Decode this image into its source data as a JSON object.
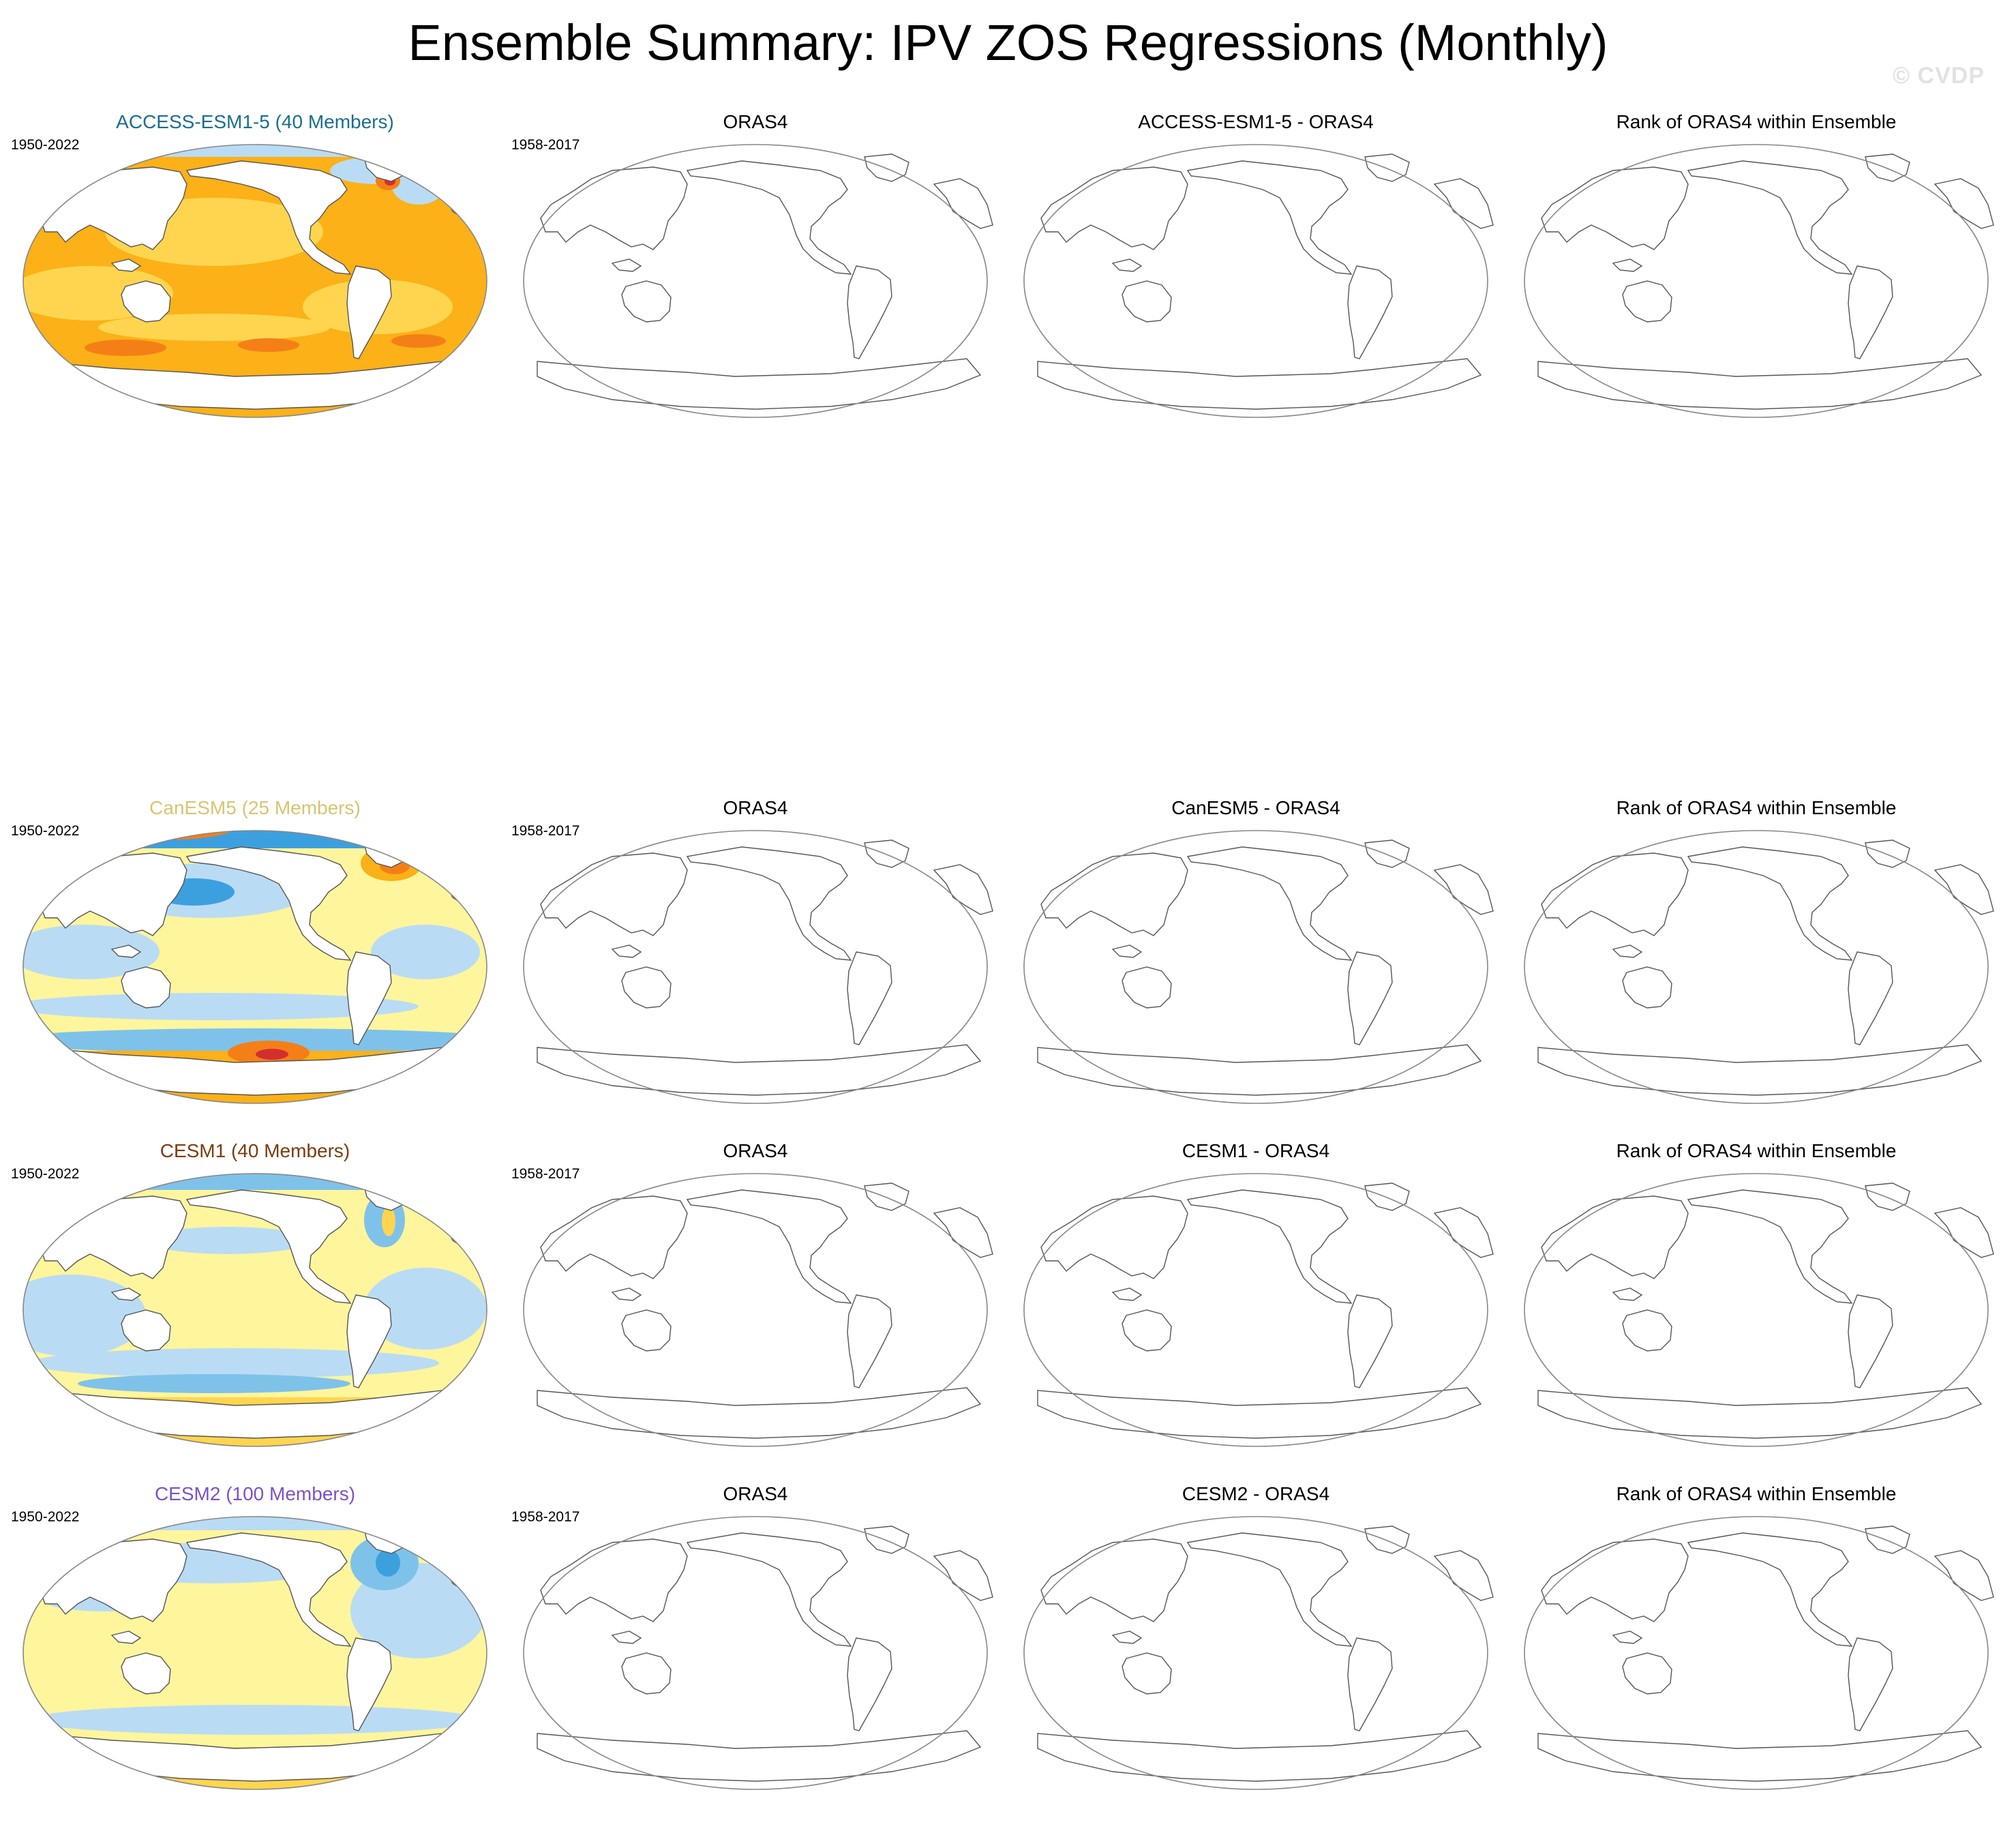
{
  "title": "Ensemble Summary: IPV ZOS Regressions (Monthly)",
  "watermark": "© CVDP",
  "palette": {
    "pos_light": "#fff59d",
    "pos_mid": "#ffd54f",
    "pos_strong": "#fbb117",
    "pos_stronger": "#f57f17",
    "pos_extreme": "#d32f2f",
    "neg_light": "#b9dcf4",
    "neg_mid": "#7ec2ea",
    "neg_strong": "#3ca0df",
    "land": "#ffffff",
    "coast": "#555555",
    "frame": "#888888"
  },
  "rows": [
    {
      "model": "ACCESS-ESM1-5 (40 Members)",
      "model_color": "#1a6e8e",
      "model_period": "1950-2022",
      "obs_title": "ORAS4",
      "obs_period": "1958-2017",
      "diff_title": "ACCESS-ESM1-5 - ORAS4",
      "rank_title": "Rank of ORAS4 within Ensemble",
      "pattern": "warm"
    },
    {
      "model": "CanESM5 (25 Members)",
      "model_color": "#d8c470",
      "model_period": "1950-2022",
      "obs_title": "ORAS4",
      "obs_period": "1958-2017",
      "diff_title": "CanESM5 - ORAS4",
      "rank_title": "Rank of ORAS4 within Ensemble",
      "pattern": "canesm"
    },
    {
      "model": "CESM1 (40 Members)",
      "model_color": "#7a3c0e",
      "model_period": "1950-2022",
      "obs_title": "ORAS4",
      "obs_period": "1958-2017",
      "diff_title": "CESM1 - ORAS4",
      "rank_title": "Rank of ORAS4 within Ensemble",
      "pattern": "cesm1"
    },
    {
      "model": "CESM2 (100 Members)",
      "model_color": "#7b52c8",
      "model_period": "1950-2022",
      "obs_title": "ORAS4",
      "obs_period": "1958-2017",
      "diff_title": "CESM2 - ORAS4",
      "rank_title": "Rank of ORAS4 within Ensemble",
      "pattern": "cesm2"
    }
  ]
}
